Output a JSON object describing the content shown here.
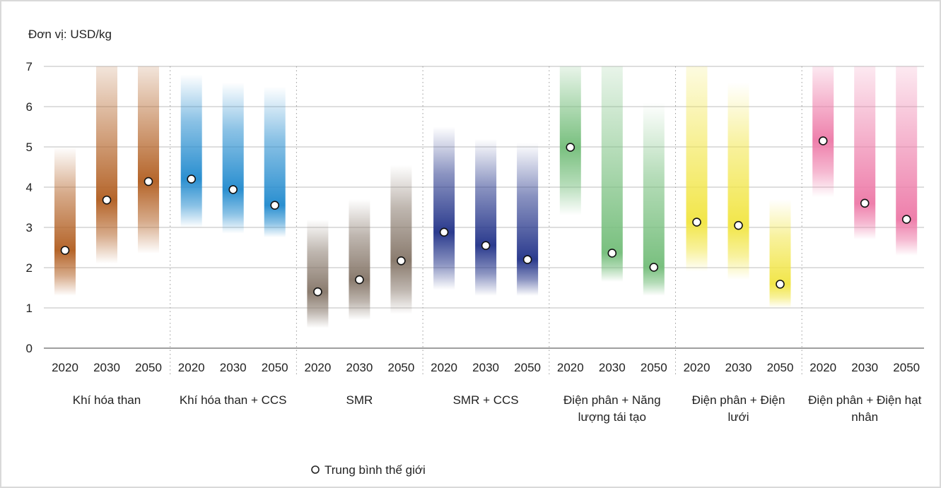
{
  "chart_data": {
    "type": "range-bar",
    "unit_label": "Đơn vị: USD/kg",
    "ylim": [
      0,
      7
    ],
    "yticks": [
      0,
      1,
      2,
      3,
      4,
      5,
      6,
      7
    ],
    "grid": true,
    "legend": {
      "label": "Trung bình thế giới",
      "placement": "bottom-center"
    },
    "years": [
      "2020",
      "2030",
      "2050"
    ],
    "groups": [
      {
        "name": "Khí hóa than",
        "label_lines": [
          "Khí hóa than"
        ],
        "color": "#b5652a",
        "bars": [
          {
            "year": "2020",
            "low": 1.3,
            "high": 5.0,
            "mean": 2.43
          },
          {
            "year": "2030",
            "low": 2.1,
            "high": 7.0,
            "mean": 3.68
          },
          {
            "year": "2050",
            "low": 2.35,
            "high": 7.0,
            "mean": 4.14
          }
        ]
      },
      {
        "name": "Khí hóa than + CCS",
        "label_lines": [
          "Khí hóa than + CCS"
        ],
        "color": "#2a8fd0",
        "bars": [
          {
            "year": "2020",
            "low": 3.0,
            "high": 6.8,
            "mean": 4.2
          },
          {
            "year": "2030",
            "low": 2.85,
            "high": 6.6,
            "mean": 3.94
          },
          {
            "year": "2050",
            "low": 2.75,
            "high": 6.5,
            "mean": 3.55
          }
        ]
      },
      {
        "name": "SMR",
        "label_lines": [
          "SMR"
        ],
        "color": "#8a7b6e",
        "bars": [
          {
            "year": "2020",
            "low": 0.5,
            "high": 3.2,
            "mean": 1.4
          },
          {
            "year": "2030",
            "low": 0.7,
            "high": 3.7,
            "mean": 1.7
          },
          {
            "year": "2050",
            "low": 0.85,
            "high": 4.55,
            "mean": 2.17
          }
        ]
      },
      {
        "name": "SMR + CCS",
        "label_lines": [
          "SMR + CCS"
        ],
        "color": "#2b3b8e",
        "bars": [
          {
            "year": "2020",
            "low": 1.45,
            "high": 5.5,
            "mean": 2.88
          },
          {
            "year": "2030",
            "low": 1.3,
            "high": 5.2,
            "mean": 2.55
          },
          {
            "year": "2050",
            "low": 1.3,
            "high": 5.1,
            "mean": 2.2
          }
        ]
      },
      {
        "name": "Điện phân + Năng lượng tái tạo",
        "label_lines": [
          "Điện phân + Năng",
          "lượng tái tạo"
        ],
        "color": "#79c07f",
        "bars": [
          {
            "year": "2020",
            "low": 3.3,
            "high": 7.0,
            "mean": 4.99
          },
          {
            "year": "2030",
            "low": 1.65,
            "high": 7.0,
            "mean": 2.36
          },
          {
            "year": "2050",
            "low": 1.3,
            "high": 6.1,
            "mean": 2.01
          }
        ]
      },
      {
        "name": "Điện phân + Điện lưới",
        "label_lines": [
          "Điện phân + Điện",
          "lưới"
        ],
        "color": "#f2e64a",
        "bars": [
          {
            "year": "2020",
            "low": 1.9,
            "high": 7.0,
            "mean": 3.13
          },
          {
            "year": "2030",
            "low": 1.7,
            "high": 6.6,
            "mean": 3.05
          },
          {
            "year": "2050",
            "low": 1.0,
            "high": 3.7,
            "mean": 1.59
          }
        ]
      },
      {
        "name": "Điện phân + Điện hạt nhân",
        "label_lines": [
          "Điện phân + Điện hạt",
          "nhân"
        ],
        "color": "#ee7fab",
        "bars": [
          {
            "year": "2020",
            "low": 3.75,
            "high": 7.0,
            "mean": 5.15
          },
          {
            "year": "2030",
            "low": 2.7,
            "high": 7.0,
            "mean": 3.6
          },
          {
            "year": "2050",
            "low": 2.3,
            "high": 7.0,
            "mean": 3.2
          }
        ]
      }
    ]
  }
}
